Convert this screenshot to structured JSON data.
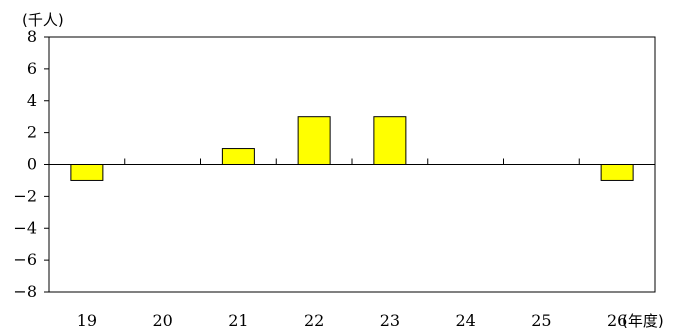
{
  "chart_data": {
    "type": "bar",
    "title": "",
    "ylabel": "(千人)",
    "xlabel": "(年度)",
    "categories": [
      "19",
      "20",
      "21",
      "22",
      "23",
      "24",
      "25",
      "26"
    ],
    "values": [
      -1,
      0,
      1,
      3,
      3,
      0,
      0,
      -1
    ],
    "ylim": [
      -8,
      8
    ],
    "yticks": [
      8,
      6,
      4,
      2,
      0,
      -2,
      -4,
      -6,
      -8
    ],
    "ytick_labels": [
      "8",
      "6",
      "4",
      "2",
      "0",
      "−2",
      "−4",
      "−6",
      "−8"
    ],
    "grid": false,
    "legend": "none",
    "bar_color": "#ffff00",
    "bar_edge_color": "#000000"
  }
}
